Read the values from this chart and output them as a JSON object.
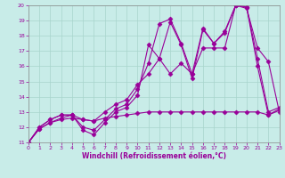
{
  "background_color": "#c8ece8",
  "grid_color": "#a8d4cc",
  "line_color": "#990099",
  "xlim": [
    0,
    23
  ],
  "ylim": [
    11,
    20
  ],
  "xlabel": "Windchill (Refroidissement éolien,°C)",
  "xticks": [
    0,
    1,
    2,
    3,
    4,
    5,
    6,
    7,
    8,
    9,
    10,
    11,
    12,
    13,
    14,
    15,
    16,
    17,
    18,
    19,
    20,
    21,
    22,
    23
  ],
  "yticks": [
    11,
    12,
    13,
    14,
    15,
    16,
    17,
    18,
    19,
    20
  ],
  "line1_x": [
    0,
    1,
    2,
    3,
    4,
    5,
    6,
    7,
    8,
    9,
    10,
    11,
    12,
    13,
    14,
    15,
    16,
    17,
    18,
    19,
    20,
    21,
    22,
    23
  ],
  "line1_y": [
    11,
    12,
    12.5,
    12.8,
    12.8,
    11.8,
    11.5,
    12.3,
    13.0,
    13.3,
    14.1,
    17.4,
    16.5,
    18.9,
    17.4,
    15.2,
    18.4,
    17.5,
    18.2,
    20.0,
    19.8,
    17.2,
    16.3,
    13.0
  ],
  "line2_x": [
    0,
    1,
    2,
    3,
    4,
    5,
    6,
    7,
    8,
    9,
    10,
    11,
    12,
    13,
    14,
    15,
    16,
    17,
    18,
    19,
    20,
    21,
    22,
    23
  ],
  "line2_y": [
    11,
    12,
    12.5,
    12.8,
    12.8,
    12.0,
    11.8,
    12.5,
    13.2,
    13.5,
    14.5,
    16.2,
    18.8,
    19.1,
    17.5,
    15.5,
    18.5,
    17.5,
    18.3,
    20.0,
    19.9,
    16.0,
    12.8,
    13.2
  ],
  "line3_x": [
    0,
    1,
    2,
    3,
    4,
    5,
    6,
    7,
    8,
    9,
    10,
    11,
    12,
    13,
    14,
    15,
    16,
    17,
    18,
    19,
    20,
    21,
    22,
    23
  ],
  "line3_y": [
    11,
    11.9,
    12.3,
    12.6,
    12.8,
    12.5,
    12.4,
    13.0,
    13.5,
    13.8,
    14.8,
    15.5,
    16.5,
    15.5,
    16.2,
    15.5,
    17.2,
    17.2,
    17.2,
    20.0,
    19.9,
    16.5,
    13.0,
    13.3
  ],
  "line4_x": [
    0,
    1,
    2,
    3,
    4,
    5,
    6,
    7,
    8,
    9,
    10,
    11,
    12,
    13,
    14,
    15,
    16,
    17,
    18,
    19,
    20,
    21,
    22,
    23
  ],
  "line4_y": [
    11,
    11.9,
    12.3,
    12.5,
    12.6,
    12.5,
    12.4,
    12.6,
    12.7,
    12.8,
    12.9,
    13.0,
    13.0,
    13.0,
    13.0,
    13.0,
    13.0,
    13.0,
    13.0,
    13.0,
    13.0,
    13.0,
    12.8,
    13.1
  ]
}
